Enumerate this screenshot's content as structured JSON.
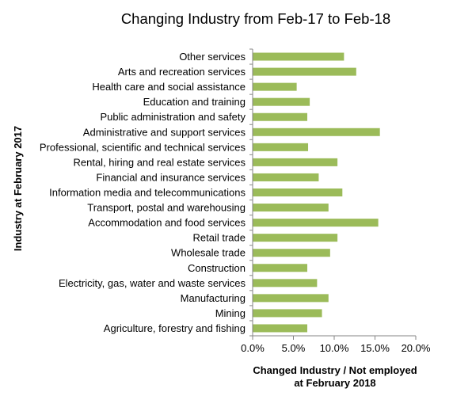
{
  "chart_data": {
    "type": "bar",
    "orientation": "horizontal",
    "title": "Changing Industry from Feb-17 to Feb-18",
    "ylabel": "Industry at February 2017",
    "xlabel_lines": [
      "Changed Industry / Not employed",
      "at February 2018"
    ],
    "categories": [
      "Other services",
      "Arts and recreation services",
      "Health care and social assistance",
      "Education and training",
      "Public administration and safety",
      "Administrative and support services",
      "Professional, scientific and technical services",
      "Rental, hiring and real estate services",
      "Financial and insurance services",
      "Information media and telecommunications",
      "Transport, postal and warehousing",
      "Accommodation and food services",
      "Retail trade",
      "Wholesale trade",
      "Construction",
      "Electricity, gas, water and waste services",
      "Manufacturing",
      "Mining",
      "Agriculture, forestry and fishing"
    ],
    "values": [
      11.2,
      12.7,
      5.4,
      7.0,
      6.7,
      15.6,
      6.8,
      10.4,
      8.1,
      11.0,
      9.3,
      15.4,
      10.4,
      9.5,
      6.7,
      7.9,
      9.3,
      8.5,
      6.7
    ],
    "xlim": [
      0,
      20
    ],
    "xticks": [
      "0.0%",
      "5.0%",
      "10.0%",
      "15.0%",
      "20.0%"
    ],
    "xtick_values": [
      0,
      5,
      10,
      15,
      20
    ],
    "colors": {
      "bar": "#9bbb59",
      "axis": "#868686"
    },
    "grid": false,
    "legend": "none"
  }
}
